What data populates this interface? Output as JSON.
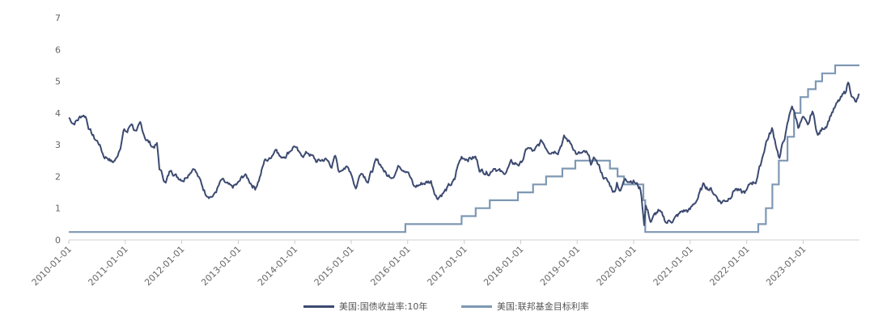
{
  "chart_data": {
    "type": "line",
    "title": "",
    "xlabel": "",
    "ylabel": "",
    "ylim": [
      0,
      7
    ],
    "y_ticks": [
      "0",
      "1",
      "2",
      "3",
      "4",
      "5",
      "6",
      "7"
    ],
    "x_range": [
      "2010-01-01",
      "2023-12-31"
    ],
    "x_ticks": [
      "2010-01-01",
      "2011-01-01",
      "2012-01-01",
      "2013-01-01",
      "2014-01-01",
      "2015-01-01",
      "2016-01-01",
      "2017-01-01",
      "2018-01-01",
      "2019-01-01",
      "2020-01-01",
      "2021-01-01",
      "2022-01-01",
      "2023-01-01"
    ],
    "grid": false,
    "legend_position": "bottom",
    "series": [
      {
        "name": "美国:国债收益率:10年",
        "color": "#3c4a70",
        "points": [
          [
            "2010-01-01",
            3.85
          ],
          [
            "2010-02-01",
            3.7
          ],
          [
            "2010-03-01",
            3.8
          ],
          [
            "2010-04-01",
            3.95
          ],
          [
            "2010-04-20",
            3.92
          ],
          [
            "2010-05-15",
            3.5
          ],
          [
            "2010-06-15",
            3.2
          ],
          [
            "2010-07-15",
            3.05
          ],
          [
            "2010-08-15",
            2.65
          ],
          [
            "2010-09-15",
            2.6
          ],
          [
            "2010-10-08",
            2.45
          ],
          [
            "2010-11-05",
            2.55
          ],
          [
            "2010-12-01",
            3.0
          ],
          [
            "2010-12-20",
            3.45
          ],
          [
            "2011-01-15",
            3.4
          ],
          [
            "2011-02-10",
            3.7
          ],
          [
            "2011-03-15",
            3.35
          ],
          [
            "2011-04-08",
            3.6
          ],
          [
            "2011-05-15",
            3.2
          ],
          [
            "2011-06-25",
            2.95
          ],
          [
            "2011-07-25",
            3.0
          ],
          [
            "2011-08-10",
            2.25
          ],
          [
            "2011-09-20",
            1.8
          ],
          [
            "2011-10-25",
            2.25
          ],
          [
            "2011-12-01",
            2.0
          ],
          [
            "2012-01-15",
            1.95
          ],
          [
            "2012-03-20",
            2.35
          ],
          [
            "2012-04-20",
            1.95
          ],
          [
            "2012-06-01",
            1.5
          ],
          [
            "2012-07-25",
            1.4
          ],
          [
            "2012-09-15",
            1.85
          ],
          [
            "2012-11-15",
            1.6
          ],
          [
            "2012-12-31",
            1.75
          ],
          [
            "2013-02-10",
            2.05
          ],
          [
            "2013-04-20",
            1.65
          ],
          [
            "2013-05-20",
            2.0
          ],
          [
            "2013-06-25",
            2.55
          ],
          [
            "2013-07-15",
            2.5
          ],
          [
            "2013-09-05",
            2.95
          ],
          [
            "2013-10-01",
            2.6
          ],
          [
            "2013-11-15",
            2.75
          ],
          [
            "2013-12-31",
            3.0
          ],
          [
            "2014-02-01",
            2.65
          ],
          [
            "2014-04-01",
            2.75
          ],
          [
            "2014-05-25",
            2.45
          ],
          [
            "2014-07-15",
            2.55
          ],
          [
            "2014-08-28",
            2.35
          ],
          [
            "2014-09-20",
            2.6
          ],
          [
            "2014-10-15",
            2.1
          ],
          [
            "2014-11-15",
            2.35
          ],
          [
            "2014-12-31",
            2.15
          ],
          [
            "2015-01-31",
            1.65
          ],
          [
            "2015-03-07",
            2.2
          ],
          [
            "2015-04-20",
            1.9
          ],
          [
            "2015-06-10",
            2.45
          ],
          [
            "2015-07-15",
            2.35
          ],
          [
            "2015-08-25",
            2.0
          ],
          [
            "2015-09-25",
            2.05
          ],
          [
            "2015-11-06",
            2.35
          ],
          [
            "2015-12-31",
            2.25
          ],
          [
            "2016-02-11",
            1.65
          ],
          [
            "2016-04-15",
            1.8
          ],
          [
            "2016-05-31",
            1.85
          ],
          [
            "2016-07-08",
            1.36
          ],
          [
            "2016-08-31",
            1.55
          ],
          [
            "2016-10-31",
            1.85
          ],
          [
            "2016-11-15",
            2.25
          ],
          [
            "2016-12-15",
            2.6
          ],
          [
            "2017-03-14",
            2.6
          ],
          [
            "2017-04-15",
            2.2
          ],
          [
            "2017-06-15",
            2.15
          ],
          [
            "2017-07-15",
            2.35
          ],
          [
            "2017-09-08",
            2.05
          ],
          [
            "2017-10-31",
            2.4
          ],
          [
            "2017-12-31",
            2.4
          ],
          [
            "2018-02-15",
            2.9
          ],
          [
            "2018-03-30",
            2.75
          ],
          [
            "2018-05-17",
            3.1
          ],
          [
            "2018-06-30",
            2.85
          ],
          [
            "2018-08-30",
            2.85
          ],
          [
            "2018-10-08",
            3.23
          ],
          [
            "2018-11-30",
            3.0
          ],
          [
            "2018-12-31",
            2.7
          ],
          [
            "2019-03-01",
            2.7
          ],
          [
            "2019-03-31",
            2.4
          ],
          [
            "2019-04-30",
            2.55
          ],
          [
            "2019-06-15",
            2.05
          ],
          [
            "2019-08-31",
            1.5
          ],
          [
            "2019-09-15",
            1.85
          ],
          [
            "2019-10-08",
            1.55
          ],
          [
            "2019-11-08",
            1.95
          ],
          [
            "2019-12-31",
            1.9
          ],
          [
            "2020-02-15",
            1.6
          ],
          [
            "2020-03-09",
            0.55
          ],
          [
            "2020-03-20",
            1.1
          ],
          [
            "2020-04-20",
            0.6
          ],
          [
            "2020-06-08",
            0.9
          ],
          [
            "2020-07-31",
            0.55
          ],
          [
            "2020-09-30",
            0.7
          ],
          [
            "2020-11-15",
            0.9
          ],
          [
            "2020-12-31",
            0.93
          ],
          [
            "2021-02-15",
            1.3
          ],
          [
            "2021-03-31",
            1.74
          ],
          [
            "2021-05-15",
            1.6
          ],
          [
            "2021-07-20",
            1.2
          ],
          [
            "2021-08-31",
            1.3
          ],
          [
            "2021-10-20",
            1.65
          ],
          [
            "2021-11-30",
            1.45
          ],
          [
            "2021-12-31",
            1.52
          ],
          [
            "2022-01-31",
            1.8
          ],
          [
            "2022-02-28",
            1.85
          ],
          [
            "2022-03-31",
            2.35
          ],
          [
            "2022-05-06",
            3.1
          ],
          [
            "2022-06-14",
            3.48
          ],
          [
            "2022-08-01",
            2.6
          ],
          [
            "2022-09-15",
            3.45
          ],
          [
            "2022-10-21",
            4.25
          ],
          [
            "2022-11-30",
            3.6
          ],
          [
            "2022-12-31",
            3.85
          ],
          [
            "2023-01-31",
            3.5
          ],
          [
            "2023-03-02",
            4.05
          ],
          [
            "2023-04-06",
            3.3
          ],
          [
            "2023-05-31",
            3.65
          ],
          [
            "2023-07-06",
            4.05
          ],
          [
            "2023-08-21",
            4.35
          ],
          [
            "2023-09-29",
            4.6
          ],
          [
            "2023-10-19",
            4.98
          ],
          [
            "2023-11-15",
            4.55
          ],
          [
            "2023-12-10",
            4.3
          ],
          [
            "2023-12-31",
            4.6
          ]
        ]
      },
      {
        "name": "美国:联邦基金目标利率",
        "color": "#7e98b3",
        "steps": [
          [
            "2010-01-01",
            0.25
          ],
          [
            "2015-12-17",
            0.5
          ],
          [
            "2016-12-15",
            0.75
          ],
          [
            "2017-03-16",
            1.0
          ],
          [
            "2017-06-15",
            1.25
          ],
          [
            "2017-12-14",
            1.5
          ],
          [
            "2018-03-22",
            1.75
          ],
          [
            "2018-06-14",
            2.0
          ],
          [
            "2018-09-27",
            2.25
          ],
          [
            "2018-12-20",
            2.5
          ],
          [
            "2019-08-01",
            2.25
          ],
          [
            "2019-09-19",
            2.0
          ],
          [
            "2019-10-31",
            1.75
          ],
          [
            "2020-03-04",
            1.25
          ],
          [
            "2020-03-16",
            0.25
          ],
          [
            "2022-03-17",
            0.5
          ],
          [
            "2022-05-05",
            1.0
          ],
          [
            "2022-06-16",
            1.75
          ],
          [
            "2022-07-28",
            2.5
          ],
          [
            "2022-09-22",
            3.25
          ],
          [
            "2022-11-03",
            4.0
          ],
          [
            "2022-12-15",
            4.5
          ],
          [
            "2023-02-02",
            4.75
          ],
          [
            "2023-03-23",
            5.0
          ],
          [
            "2023-05-04",
            5.25
          ],
          [
            "2023-07-27",
            5.5
          ],
          [
            "2023-12-31",
            5.5
          ]
        ]
      }
    ]
  }
}
